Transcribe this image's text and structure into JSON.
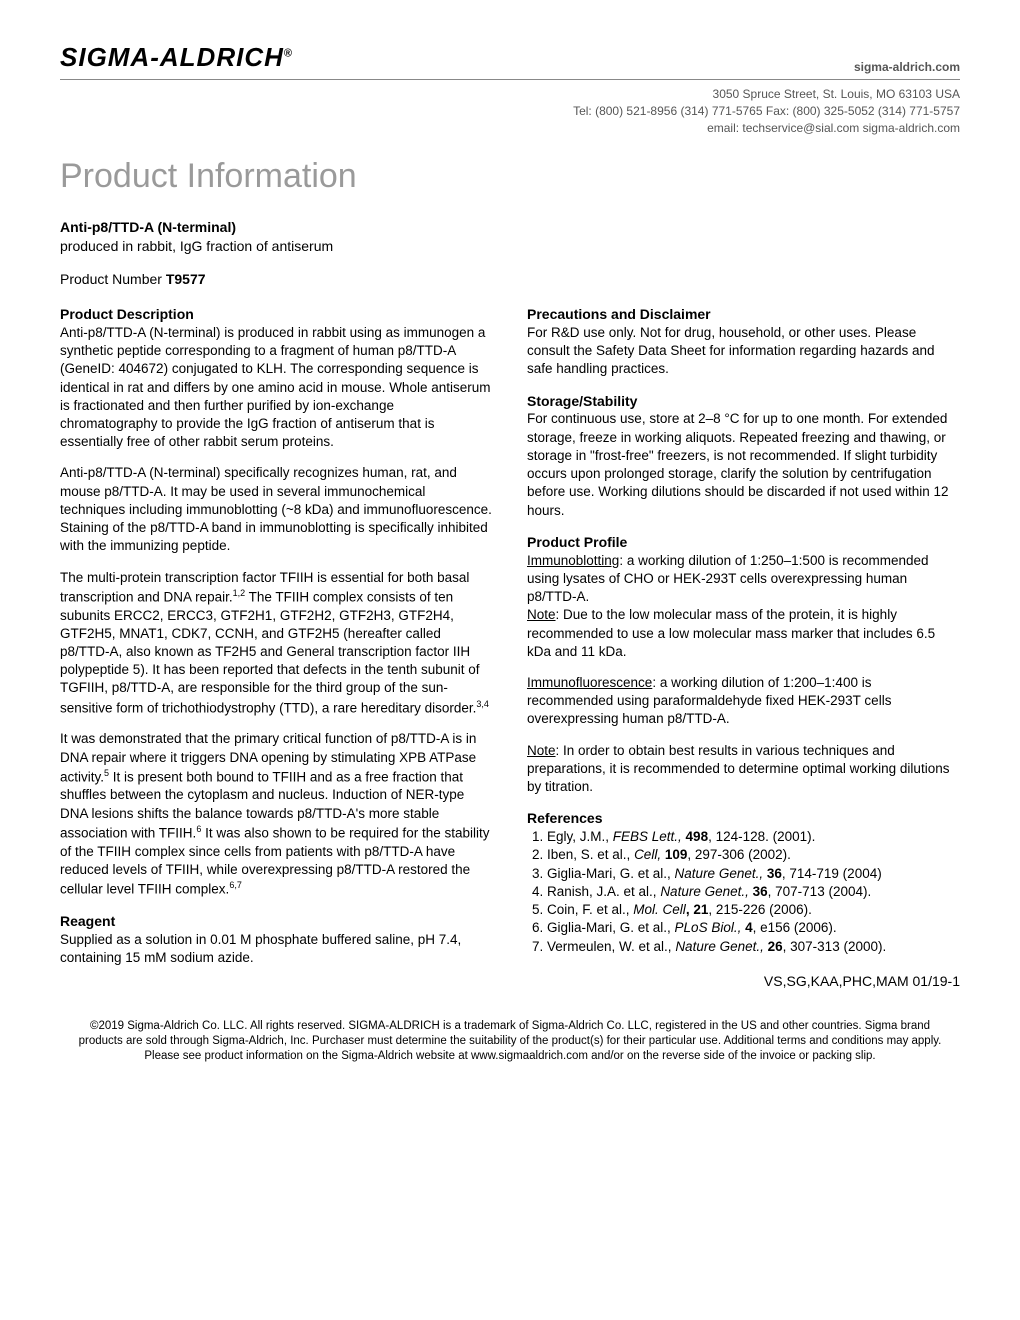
{
  "header": {
    "logo_text": "SIGMA-ALDRICH",
    "logo_reg": "®",
    "site": "sigma-aldrich.com",
    "addr_line1": "3050 Spruce Street, St. Louis, MO 63103 USA",
    "addr_line2": "Tel: (800) 521-8956  (314) 771-5765    Fax: (800) 325-5052  (314) 771-5757",
    "addr_line3": "email: techservice@sial.com   sigma-aldrich.com"
  },
  "page_title": "Product Information",
  "product": {
    "name": "Anti-p8/TTD-A (N-terminal)",
    "subtitle": "produced in rabbit, IgG fraction of antiserum",
    "number_label": "Product Number ",
    "number": "T9577"
  },
  "left": {
    "desc_head": "Product Description",
    "desc_p1": "Anti-p8/TTD-A (N-terminal) is produced in rabbit using as immunogen a synthetic peptide corresponding to a fragment of human p8/TTD-A (GeneID: 404672) conjugated to KLH. The corresponding sequence is identical in rat and differs by one amino acid in mouse. Whole antiserum is fractionated and then further purified by ion-exchange chromatography to provide the IgG fraction of antiserum that is essentially free of other rabbit serum proteins.",
    "desc_p2": "Anti-p8/TTD-A (N-terminal) specifically recognizes human, rat, and mouse p8/TTD-A. It may be used in several immunochemical techniques including immunoblotting (~8 kDa) and immunofluorescence. Staining of the p8/TTD-A band in immunoblotting is specifically inhibited with the immunizing peptide.",
    "desc_p3a": "The multi-protein transcription factor TFIIH is essential for both basal transcription and DNA repair.",
    "desc_p3_sup1": "1,2",
    "desc_p3b": " The TFIIH complex consists of ten subunits ERCC2, ERCC3, GTF2H1, GTF2H2, GTF2H3, GTF2H4, GTF2H5, MNAT1, CDK7, CCNH, and GTF2H5 (hereafter called p8/TTD-A, also known as TF2H5 and General transcription factor IIH polypeptide 5). It has been reported that defects in the tenth subunit of TGFIIH, p8/TTD-A, are responsible for the third group of the sun-sensitive form of trichothiodystrophy (TTD), a rare hereditary disorder.",
    "desc_p3_sup2": "3,4",
    "desc_p4a": "It was demonstrated that the primary critical function of p8/TTD-A is in DNA repair where it triggers DNA opening by stimulating XPB ATPase activity.",
    "desc_p4_sup1": "5",
    "desc_p4b": " It is present both bound to TFIIH and as a free fraction that shuffles between the cytoplasm and nucleus. Induction of NER-type DNA lesions shifts the balance towards p8/TTD-A's more stable association with TFIIH.",
    "desc_p4_sup2": "6",
    "desc_p4c": " It was also shown to be required for the stability of the TFIIH complex since cells from patients with p8/TTD-A have reduced levels of TFIIH, while overexpressing p8/TTD-A restored the cellular level TFIIH complex.",
    "desc_p4_sup3": "6,7",
    "reagent_head": "Reagent",
    "reagent_p": "Supplied as a solution in 0.01 M phosphate buffered saline, pH 7.4, containing 15 mM sodium azide."
  },
  "right": {
    "prec_head": "Precautions and Disclaimer",
    "prec_p": "For R&D use only. Not for drug, household, or other uses. Please consult the Safety Data Sheet for information regarding hazards and safe handling practices.",
    "storage_head": "Storage/Stability",
    "storage_p": "For continuous use, store at 2–8 °C for up to one month. For extended storage, freeze in working aliquots. Repeated freezing and thawing, or storage in \"frost-free\" freezers, is not recommended. If slight turbidity occurs upon prolonged storage, clarify the solution by centrifugation before use. Working dilutions should be discarded if not used within 12 hours.",
    "profile_head": "Product Profile",
    "profile_ib_label": "Immunoblotting",
    "profile_ib_text": ": a working dilution of 1:250–1:500 is recommended using lysates of CHO or HEK-293T cells overexpressing human p8/TTD-A.",
    "profile_note1_label": "Note",
    "profile_note1_text": ": Due to the low molecular mass of the protein, it is highly recommended to use a low molecular mass marker that includes 6.5 kDa and 11 kDa.",
    "profile_if_label": "Immunofluorescence",
    "profile_if_text": ": a working dilution of 1:200–1:400 is recommended using paraformaldehyde fixed HEK-293T cells overexpressing human p8/TTD-A.",
    "profile_note2_label": "Note",
    "profile_note2_text": ": In order to obtain best results in various techniques and preparations, it is recommended to determine optimal working dilutions by titration.",
    "refs_head": "References",
    "refs": [
      {
        "a": "Egly, J.M., ",
        "j": "FEBS Lett., ",
        "v": "498",
        "r": ", 124-128. (2001)."
      },
      {
        "a": "Iben, S. et al., ",
        "j": "Cell, ",
        "v": "109",
        "r": ", 297-306 (2002)."
      },
      {
        "a": "Giglia-Mari, G. et al., ",
        "j": "Nature Genet., ",
        "v": "36",
        "r": ", 714-719 (2004)"
      },
      {
        "a": "Ranish, J.A. et al., ",
        "j": "Nature Genet., ",
        "v": "36",
        "r": ", 707-713 (2004)."
      },
      {
        "a": "Coin, F. et al., ",
        "j": "Mol. Cell",
        "v": ", 21",
        "r": ", 215-226 (2006)."
      },
      {
        "a": "Giglia-Mari, G. et al., ",
        "j": "PLoS Biol., ",
        "v": "4",
        "r": ", e156 (2006)."
      },
      {
        "a": "Vermeulen, W. et al., ",
        "j": "Nature Genet., ",
        "v": "26",
        "r": ", 307-313 (2000)."
      }
    ],
    "revcode": "VS,SG,KAA,PHC,MAM 01/19-1"
  },
  "footer": "©2019 Sigma-Aldrich Co. LLC. All rights reserved. SIGMA-ALDRICH is a trademark of Sigma-Aldrich Co. LLC, registered in the US and other countries. Sigma brand products are sold through Sigma-Aldrich, Inc. Purchaser must determine the suitability of the product(s) for their particular use. Additional terms and conditions may apply. Please see product information on the Sigma-Aldrich website at www.sigmaaldrich.com and/or on the reverse side of the invoice or packing slip.",
  "colors": {
    "title_gray": "#9a9a9a",
    "text": "#000000",
    "header_gray": "#555555",
    "rule": "#888888",
    "background": "#ffffff"
  },
  "typography": {
    "body_pt": 13.5,
    "title_pt": 34,
    "logo_pt": 26,
    "footer_pt": 11.5
  }
}
